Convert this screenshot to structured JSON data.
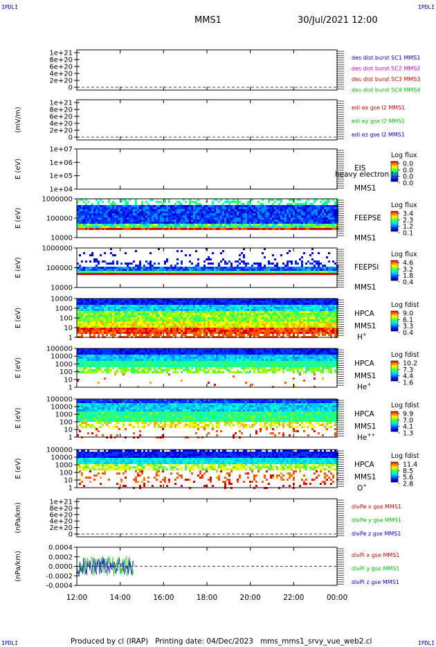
{
  "header": {
    "corner_tl": "IPDLI",
    "corner_tr": "IPDLI",
    "corner_bl": "IPDLI",
    "corner_br": "IPDLI",
    "title": "MMS1",
    "datetime": "30/Jul/2021 12:00"
  },
  "footer": {
    "produced": "Produced by cl (IRAP)",
    "printing": "Printing date: 04/Dec/2023",
    "file": "mms_mms1_srvy_vue_web2.cl"
  },
  "colors": {
    "blue": "#0000cc",
    "magenta": "#cc00cc",
    "red": "#cc0000",
    "green": "#00bb00",
    "dark_blue": "#000099"
  },
  "chart_data": [
    {
      "type": "line",
      "id": "p1",
      "yticks": [
        "1e+21",
        "8e+20",
        "6e+20",
        "4e+20",
        "2e+20",
        "0"
      ],
      "ylabel": "",
      "legend": [
        {
          "text": "des dist burst SC1 MMS1",
          "color": "#0000cc"
        },
        {
          "text": "des dist burst SC2 MMS2",
          "color": "#cc00cc"
        },
        {
          "text": "des dist burst SC3 MMS3",
          "color": "#cc0000"
        },
        {
          "text": "des dist burst SC4 MMS4",
          "color": "#00bb00"
        }
      ]
    },
    {
      "type": "line",
      "id": "p2",
      "yticks": [
        "1e+21",
        "8e+20",
        "6e+20",
        "4e+20",
        "2e+20",
        "0"
      ],
      "ylabel": "(mV/m)",
      "legend": [
        {
          "text": "edi ex gse l2 MMS1",
          "color": "#cc0000"
        },
        {
          "text": "edi ey gse l2 MMS1",
          "color": "#00bb00"
        },
        {
          "text": "edi ez gse l2 MMS1",
          "color": "#0000cc"
        }
      ]
    },
    {
      "type": "heatmap",
      "id": "p3",
      "yticks": [
        "1e+07",
        "1e+06",
        "1e+05",
        "1e+04"
      ],
      "ylabel": "E (eV)",
      "labels": [
        "EIS",
        "MMS1"
      ],
      "overlay": "heavy electron to",
      "colorbar": {
        "title": "Log flux",
        "ticks": [
          "0.0",
          "0.0",
          "0.0",
          "0.0"
        ]
      }
    },
    {
      "type": "heatmap",
      "id": "p4",
      "yticks": [
        "1000000",
        "100000",
        "10000"
      ],
      "ylabel": "E (eV)",
      "labels": [
        "FEEPSE",
        "MMS1"
      ],
      "colorbar": {
        "title": "Log flux",
        "ticks": [
          "3.4",
          "2.3",
          "1.2",
          "0.1"
        ]
      }
    },
    {
      "type": "heatmap",
      "id": "p5",
      "yticks": [
        "1000000",
        "100000",
        "10000"
      ],
      "ylabel": "E (eV)",
      "labels": [
        "FEEPSI",
        "MMS1"
      ],
      "colorbar": {
        "title": "Log flux",
        "ticks": [
          "4.6",
          "3.2",
          "1.8",
          "0.4"
        ]
      }
    },
    {
      "type": "heatmap",
      "id": "p6",
      "yticks": [
        "10000",
        "1000",
        "100",
        "10",
        "1"
      ],
      "ylabel": "E (eV)",
      "labels": [
        "HPCA",
        "MMS1"
      ],
      "species": {
        "base": "H",
        "sup": "+"
      },
      "colorbar": {
        "title": "Log fdist",
        "ticks": [
          "9.0",
          "6.1",
          "3.3",
          "0.4"
        ]
      }
    },
    {
      "type": "heatmap",
      "id": "p7",
      "yticks": [
        "100000",
        "10000",
        "1000",
        "100",
        "10",
        "1"
      ],
      "ylabel": "E (eV)",
      "labels": [
        "HPCA",
        "MMS1"
      ],
      "species": {
        "base": "He",
        "sup": "+"
      },
      "colorbar": {
        "title": "Log fdist",
        "ticks": [
          "10.2",
          "7.3",
          "4.4",
          "1.6"
        ]
      }
    },
    {
      "type": "heatmap",
      "id": "p8",
      "yticks": [
        "100000",
        "10000",
        "1000",
        "100",
        "10",
        "1"
      ],
      "ylabel": "E (eV)",
      "labels": [
        "HPCA",
        "MMS1"
      ],
      "species": {
        "base": "He",
        "sup": "++"
      },
      "colorbar": {
        "title": "Log fdist",
        "ticks": [
          "9.9",
          "7.0",
          "4.1",
          "1.3"
        ]
      }
    },
    {
      "type": "heatmap",
      "id": "p9",
      "yticks": [
        "100000",
        "10000",
        "1000",
        "100",
        "10",
        "1"
      ],
      "ylabel": "E (eV)",
      "labels": [
        "HPCA",
        "MMS1"
      ],
      "species": {
        "base": "O",
        "sup": "+"
      },
      "colorbar": {
        "title": "Log fdist",
        "ticks": [
          "11.4",
          "8.5",
          "5.6",
          "2.8"
        ]
      }
    },
    {
      "type": "line",
      "id": "p10",
      "yticks": [
        "1e+21",
        "8e+20",
        "6e+20",
        "4e+20",
        "2e+20",
        "0"
      ],
      "ylabel": "(nPa/km)",
      "legend": [
        {
          "text": "divPe x gse MMS1",
          "color": "#cc0000"
        },
        {
          "text": "divPe y gse MMS1",
          "color": "#00bb00"
        },
        {
          "text": "divPe z gse MMS1",
          "color": "#0000cc"
        }
      ]
    },
    {
      "type": "line",
      "id": "p11",
      "yticks": [
        "0.0004",
        "0.0002",
        "0.0000",
        "-0.0002",
        "-0.0004"
      ],
      "ylabel": "(nPa/km)",
      "legend": [
        {
          "text": "divPi x gse MMS1",
          "color": "#cc0000"
        },
        {
          "text": "divPi y gse MMS1",
          "color": "#00bb00"
        },
        {
          "text": "divPi z gse MMS1",
          "color": "#0000cc"
        }
      ]
    }
  ],
  "xaxis": {
    "ticks": [
      "12:00",
      "14:00",
      "16:00",
      "18:00",
      "20:00",
      "22:00",
      "00:00"
    ]
  }
}
